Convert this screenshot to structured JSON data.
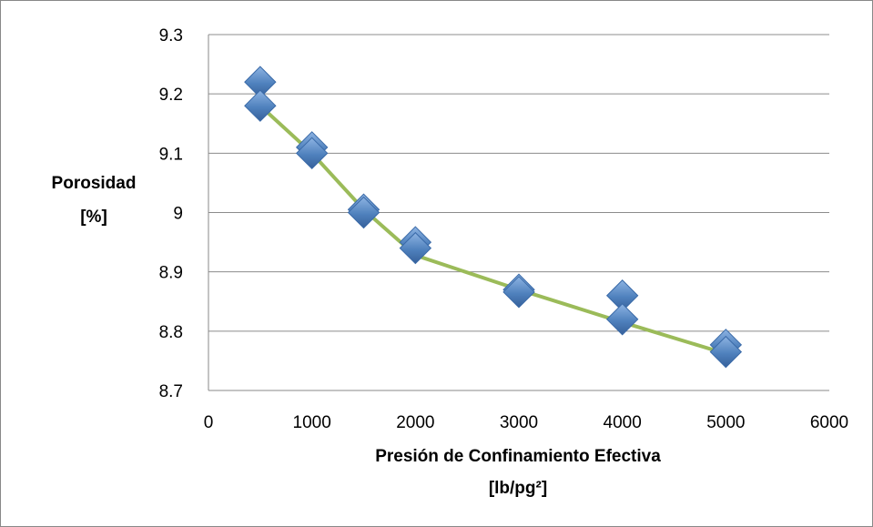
{
  "chart_data": {
    "type": "scatter",
    "xlabel": "Presión de Confinamiento Efectiva",
    "xlabel_unit": "[lb/pg²]",
    "ylabel": "Porosidad",
    "ylabel_unit": "[%]",
    "xlim": [
      0,
      6000
    ],
    "ylim": [
      8.7,
      9.3
    ],
    "x_ticks": [
      "0",
      "1000",
      "2000",
      "3000",
      "4000",
      "5000",
      "6000"
    ],
    "y_ticks": [
      "8.7",
      "8.8",
      "8.9",
      "9",
      "9.1",
      "9.2",
      "9.3"
    ],
    "grid": "horizontal",
    "series": [
      {
        "marker": "diamond",
        "color": "#4f81bd",
        "points": [
          {
            "x": 500,
            "y": 9.22
          },
          {
            "x": 500,
            "y": 9.18
          },
          {
            "x": 1000,
            "y": 9.11
          },
          {
            "x": 1000,
            "y": 9.1
          },
          {
            "x": 1500,
            "y": 9.005
          },
          {
            "x": 1500,
            "y": 9.0
          },
          {
            "x": 2000,
            "y": 8.95
          },
          {
            "x": 2000,
            "y": 8.94
          },
          {
            "x": 3000,
            "y": 8.87
          },
          {
            "x": 3000,
            "y": 8.866
          },
          {
            "x": 4000,
            "y": 8.86
          },
          {
            "x": 4000,
            "y": 8.82
          },
          {
            "x": 5000,
            "y": 8.777
          },
          {
            "x": 5000,
            "y": 8.765
          }
        ]
      },
      {
        "type": "line",
        "color": "#9bbb59",
        "x": [
          500,
          1000,
          1500,
          2000,
          3000,
          4000,
          5000
        ],
        "y": [
          9.18,
          9.1,
          9.005,
          8.928,
          8.87,
          8.815,
          8.762
        ]
      }
    ]
  }
}
